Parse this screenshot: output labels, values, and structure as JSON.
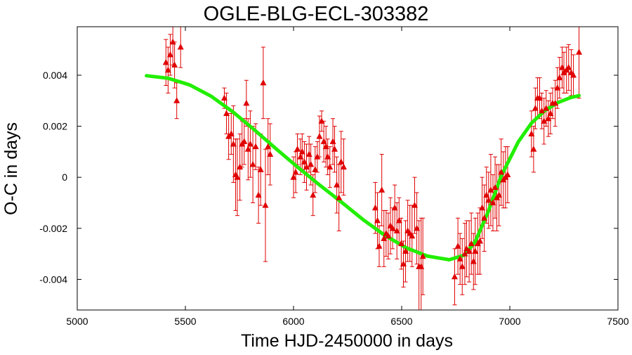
{
  "chart_data": {
    "type": "scatter",
    "title": "OGLE-BLG-ECL-303382",
    "xlabel": "Time HJD-2450000 in days",
    "ylabel": "O-C in days",
    "xlim": [
      5000,
      7500
    ],
    "ylim": [
      -0.0052,
      0.0059
    ],
    "grid": false,
    "legend": "none",
    "x_ticks": [
      5000,
      5500,
      6000,
      6500,
      7000,
      7500
    ],
    "x_tick_labels": [
      "5000",
      "5500",
      "6000",
      "6500",
      "7000",
      "7500"
    ],
    "y_ticks": [
      -0.004,
      -0.002,
      0,
      0.002,
      0.004
    ],
    "y_tick_labels": [
      "-0.004",
      "-0.002",
      "0",
      "0.002",
      "0.004"
    ],
    "colors": {
      "points": "#e00000",
      "fit": "#22ee00",
      "frame": "#000000"
    },
    "series": [
      {
        "kind": "points-with-errorbars",
        "marker": "triangle",
        "x": [
          5410,
          5420,
          5430,
          5442,
          5450,
          5460,
          5478,
          5680,
          5690,
          5700,
          5712,
          5722,
          5732,
          5740,
          5752,
          5762,
          5772,
          5782,
          5790,
          5800,
          5812,
          5825,
          5838,
          5848,
          5860,
          5870,
          5882,
          5892,
          6000,
          6010,
          6018,
          6032,
          6040,
          6050,
          6060,
          6072,
          6080,
          6090,
          6100,
          6110,
          6120,
          6130,
          6140,
          6150,
          6158,
          6168,
          6182,
          6190,
          6200,
          6210,
          6220,
          6232,
          6378,
          6388,
          6396,
          6408,
          6418,
          6428,
          6438,
          6448,
          6458,
          6468,
          6478,
          6488,
          6498,
          6508,
          6518,
          6528,
          6538,
          6548,
          6560,
          6570,
          6580,
          6590,
          6598,
          6745,
          6760,
          6770,
          6780,
          6792,
          6800,
          6812,
          6822,
          6832,
          6840,
          6852,
          6862,
          6872,
          6882,
          6892,
          6902,
          6912,
          6922,
          6932,
          6940,
          6950,
          6960,
          6970,
          6980,
          6990,
          7100,
          7110,
          7118,
          7128,
          7138,
          7148,
          7158,
          7168,
          7178,
          7188,
          7198,
          7210,
          7220,
          7230,
          7242,
          7250,
          7262,
          7272,
          7284,
          7294,
          7320
        ],
        "y": [
          0.0045,
          0.0042,
          0.0048,
          0.0053,
          0.0044,
          0.003,
          0.0051,
          0.0031,
          0.0025,
          0.0016,
          0.0017,
          0.0013,
          0.0001,
          0.0,
          0.0004,
          0.0013,
          0.0014,
          0.0029,
          0.0011,
          0.0013,
          0.0005,
          0.0012,
          -0.0007,
          0.0003,
          0.0037,
          -0.0011,
          0.0012,
          0.0009,
          0.0,
          0.0002,
          0.0011,
          0.0008,
          0.001,
          0.0006,
          0.0004,
          0.0009,
          0.0005,
          -0.0007,
          0.0003,
          0.0008,
          0.0016,
          0.0022,
          0.0014,
          0.0012,
          0.0008,
          0.0004,
          0.0014,
          0.0011,
          -0.0003,
          -0.0008,
          0.0006,
          0.0004,
          -0.0012,
          -0.0017,
          -0.0027,
          -0.0005,
          -0.0024,
          -0.0022,
          -0.0023,
          -0.0019,
          -0.002,
          -0.0012,
          -0.0021,
          -0.0017,
          -0.0026,
          -0.0034,
          -0.0029,
          -0.0021,
          -0.0022,
          -0.0023,
          -0.0011,
          -0.002,
          -0.0035,
          -0.0035,
          -0.0031,
          -0.0039,
          -0.0027,
          -0.0032,
          -0.0035,
          -0.003,
          -0.0028,
          -0.0029,
          -0.0026,
          -0.0033,
          -0.0029,
          -0.0026,
          -0.0025,
          -0.0012,
          -0.0016,
          -0.0007,
          -0.0009,
          -0.0005,
          -0.001,
          -0.0004,
          -0.0008,
          -0.0007,
          0.0002,
          -0.0001,
          0.0,
          0.0001,
          0.0017,
          0.0011,
          0.0027,
          0.0031,
          0.0031,
          0.0026,
          0.0022,
          0.0027,
          0.0023,
          0.0025,
          0.0029,
          0.0029,
          0.0035,
          0.0039,
          0.0043,
          0.0041,
          0.0042,
          0.0043,
          0.0041,
          0.004,
          0.0049
        ],
        "err": [
          0.0009,
          0.0009,
          0.0008,
          0.0009,
          0.0009,
          0.0007,
          0.0008,
          0.0004,
          0.0008,
          0.0009,
          0.0008,
          0.0015,
          0.0014,
          0.0015,
          0.0013,
          0.0009,
          0.0009,
          0.0009,
          0.0012,
          0.0013,
          0.0015,
          0.0009,
          0.0011,
          0.0014,
          0.0014,
          0.0022,
          0.0011,
          0.0012,
          0.0008,
          0.0008,
          0.0006,
          0.0007,
          0.0007,
          0.0008,
          0.0009,
          0.0007,
          0.0008,
          0.0008,
          0.0009,
          0.0006,
          0.0008,
          0.0004,
          0.0008,
          0.0008,
          0.0007,
          0.0008,
          0.0009,
          0.0009,
          0.0011,
          0.0013,
          0.0012,
          0.0011,
          0.001,
          0.0011,
          0.0008,
          0.0014,
          0.0011,
          0.0009,
          0.0009,
          0.0011,
          0.0008,
          0.0009,
          0.0011,
          0.0009,
          0.001,
          0.0009,
          0.0012,
          0.0012,
          0.0011,
          0.0012,
          0.0011,
          0.0014,
          0.0018,
          0.0019,
          0.0015,
          0.0011,
          0.0011,
          0.001,
          0.0011,
          0.0012,
          0.0011,
          0.0012,
          0.0012,
          0.0011,
          0.0013,
          0.0012,
          0.0013,
          0.0012,
          0.0013,
          0.0011,
          0.0011,
          0.0014,
          0.0011,
          0.0012,
          0.0013,
          0.0012,
          0.0013,
          0.0011,
          0.0012,
          0.0011,
          0.0009,
          0.0009,
          0.0008,
          0.0008,
          0.0008,
          0.0007,
          0.0009,
          0.0007,
          0.0007,
          0.0008,
          0.0006,
          0.0009,
          0.0008,
          0.0008,
          0.0008,
          0.0008,
          0.0009,
          0.0009,
          0.0009,
          0.0008,
          0.0018
        ]
      },
      {
        "kind": "fit-curve",
        "x": [
          5320,
          5420,
          5520,
          5620,
          5720,
          5820,
          5920,
          6020,
          6120,
          6220,
          6320,
          6420,
          6520,
          6620,
          6720,
          6790,
          6840,
          6900,
          6960,
          7040,
          7100,
          7160,
          7220,
          7280,
          7320
        ],
        "y": [
          0.00398,
          0.00388,
          0.00362,
          0.00317,
          0.00256,
          0.00185,
          0.00111,
          0.00039,
          -0.0003,
          -0.00096,
          -0.00165,
          -0.00226,
          -0.00276,
          -0.00309,
          -0.00323,
          -0.00305,
          -0.00252,
          -0.00135,
          5e-05,
          0.0014,
          0.00212,
          0.0026,
          0.00292,
          0.00312,
          0.0032
        ]
      }
    ]
  }
}
